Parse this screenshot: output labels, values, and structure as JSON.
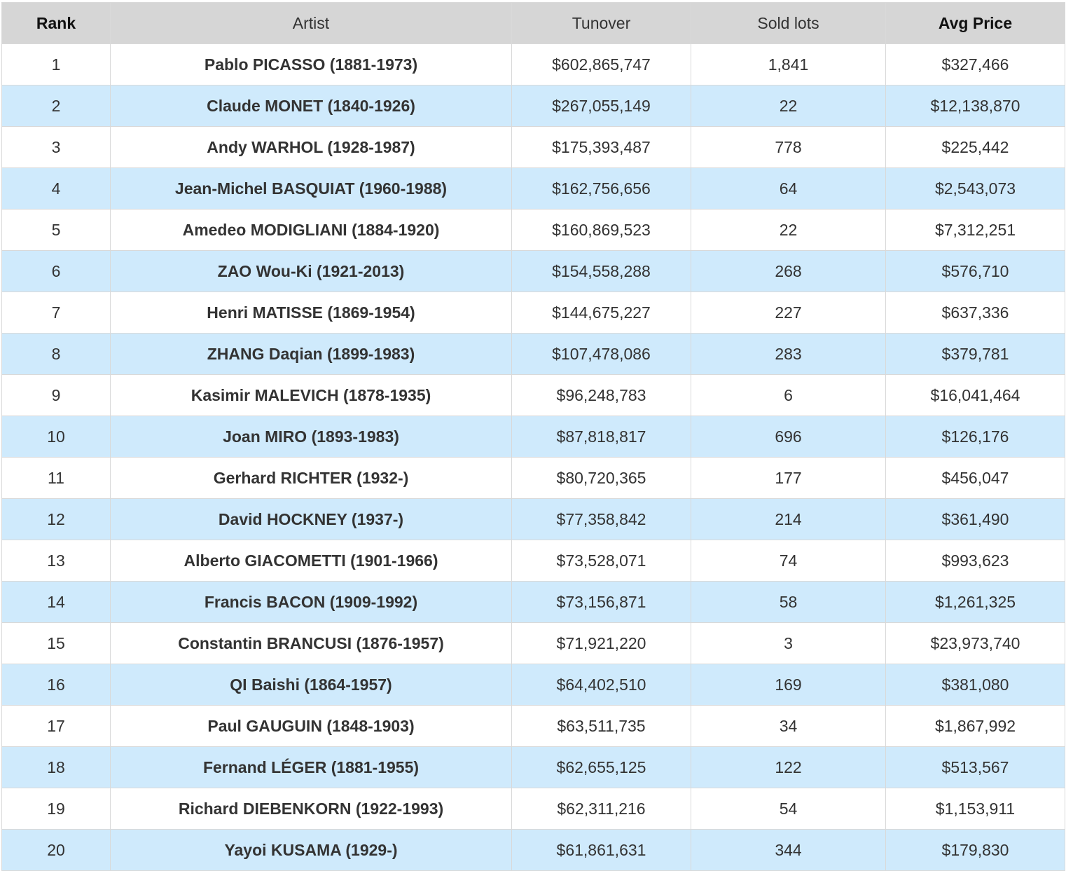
{
  "headers": {
    "rank": "Rank",
    "artist": "Artist",
    "turnover": "Tunover",
    "sold_lots": "Sold lots",
    "avg_price": "Avg Price"
  },
  "rows": [
    {
      "rank": "1",
      "artist": "Pablo PICASSO (1881-1973)",
      "turnover": "$602,865,747",
      "sold_lots": "1,841",
      "avg_price": "$327,466"
    },
    {
      "rank": "2",
      "artist": "Claude MONET (1840-1926)",
      "turnover": "$267,055,149",
      "sold_lots": "22",
      "avg_price": "$12,138,870"
    },
    {
      "rank": "3",
      "artist": "Andy WARHOL (1928-1987)",
      "turnover": "$175,393,487",
      "sold_lots": "778",
      "avg_price": "$225,442"
    },
    {
      "rank": "4",
      "artist": "Jean-Michel BASQUIAT (1960-1988)",
      "turnover": "$162,756,656",
      "sold_lots": "64",
      "avg_price": "$2,543,073"
    },
    {
      "rank": "5",
      "artist": "Amedeo MODIGLIANI (1884-1920)",
      "turnover": "$160,869,523",
      "sold_lots": "22",
      "avg_price": "$7,312,251"
    },
    {
      "rank": "6",
      "artist": "ZAO Wou-Ki (1921-2013)",
      "turnover": "$154,558,288",
      "sold_lots": "268",
      "avg_price": "$576,710"
    },
    {
      "rank": "7",
      "artist": "Henri MATISSE (1869-1954)",
      "turnover": "$144,675,227",
      "sold_lots": "227",
      "avg_price": "$637,336"
    },
    {
      "rank": "8",
      "artist": "ZHANG Daqian (1899-1983)",
      "turnover": "$107,478,086",
      "sold_lots": "283",
      "avg_price": "$379,781"
    },
    {
      "rank": "9",
      "artist": "Kasimir MALEVICH (1878-1935)",
      "turnover": "$96,248,783",
      "sold_lots": "6",
      "avg_price": "$16,041,464"
    },
    {
      "rank": "10",
      "artist": "Joan MIRO (1893-1983)",
      "turnover": "$87,818,817",
      "sold_lots": "696",
      "avg_price": "$126,176"
    },
    {
      "rank": "11",
      "artist": "Gerhard RICHTER (1932-)",
      "turnover": "$80,720,365",
      "sold_lots": "177",
      "avg_price": "$456,047"
    },
    {
      "rank": "12",
      "artist": "David HOCKNEY (1937-)",
      "turnover": "$77,358,842",
      "sold_lots": "214",
      "avg_price": "$361,490"
    },
    {
      "rank": "13",
      "artist": "Alberto GIACOMETTI (1901-1966)",
      "turnover": "$73,528,071",
      "sold_lots": "74",
      "avg_price": "$993,623"
    },
    {
      "rank": "14",
      "artist": "Francis BACON (1909-1992)",
      "turnover": "$73,156,871",
      "sold_lots": "58",
      "avg_price": "$1,261,325"
    },
    {
      "rank": "15",
      "artist": "Constantin BRANCUSI (1876-1957)",
      "turnover": "$71,921,220",
      "sold_lots": "3",
      "avg_price": "$23,973,740"
    },
    {
      "rank": "16",
      "artist": "QI Baishi (1864-1957)",
      "turnover": "$64,402,510",
      "sold_lots": "169",
      "avg_price": "$381,080"
    },
    {
      "rank": "17",
      "artist": "Paul GAUGUIN (1848-1903)",
      "turnover": "$63,511,735",
      "sold_lots": "34",
      "avg_price": "$1,867,992"
    },
    {
      "rank": "18",
      "artist": "Fernand LÉGER (1881-1955)",
      "turnover": "$62,655,125",
      "sold_lots": "122",
      "avg_price": "$513,567"
    },
    {
      "rank": "19",
      "artist": "Richard DIEBENKORN (1922-1993)",
      "turnover": "$62,311,216",
      "sold_lots": "54",
      "avg_price": "$1,153,911"
    },
    {
      "rank": "20",
      "artist": "Yayoi KUSAMA (1929-)",
      "turnover": "$61,861,631",
      "sold_lots": "344",
      "avg_price": "$179,830"
    }
  ]
}
